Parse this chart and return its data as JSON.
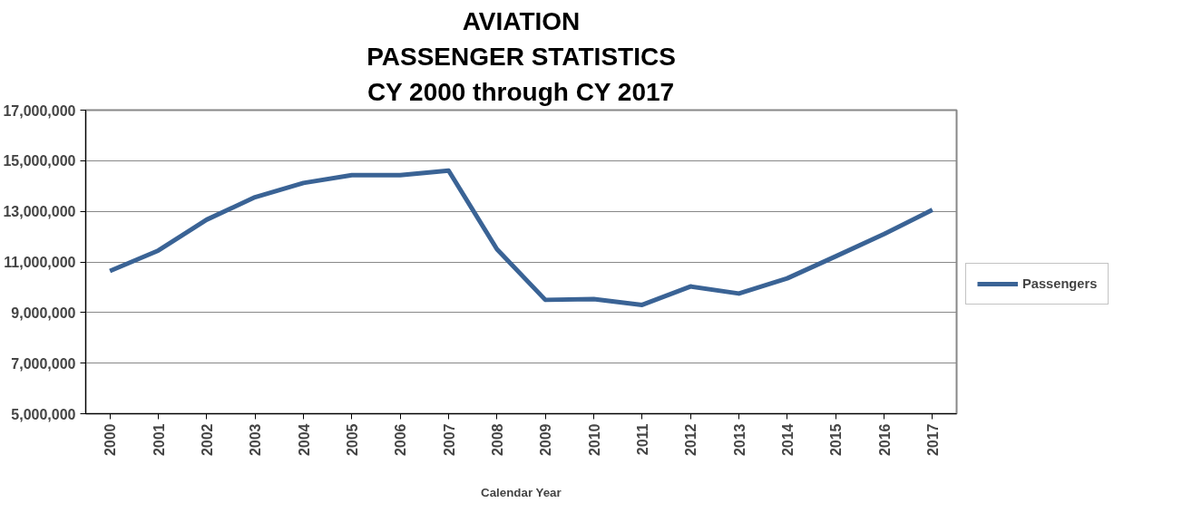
{
  "chart_data": {
    "type": "line",
    "title": "AVIATION\nPASSENGER STATISTICS\nCY 2000 through CY 2017",
    "xlabel": "Calendar Year",
    "categories": [
      "2000",
      "2001",
      "2002",
      "2003",
      "2004",
      "2005",
      "2006",
      "2007",
      "2008",
      "2009",
      "2010",
      "2011",
      "2012",
      "2013",
      "2014",
      "2015",
      "2016",
      "2017"
    ],
    "series": [
      {
        "name": "Passengers",
        "color": "#3a6395",
        "values": [
          10640000,
          11450000,
          12670000,
          13560000,
          14120000,
          14430000,
          14430000,
          14610000,
          11500000,
          9500000,
          9530000,
          9300000,
          10030000,
          9750000,
          10350000,
          11220000,
          12100000,
          13060000
        ]
      }
    ],
    "ylim": [
      5000000,
      17000000
    ],
    "yticks": [
      {
        "value": 5000000,
        "label": "5,000,000"
      },
      {
        "value": 7000000,
        "label": "7,000,000"
      },
      {
        "value": 9000000,
        "label": "9,000,000"
      },
      {
        "value": 11000000,
        "label": "11,000,000"
      },
      {
        "value": 13000000,
        "label": "13,000,000"
      },
      {
        "value": 15000000,
        "label": "15,000,000"
      },
      {
        "value": 17000000,
        "label": "17,000,000"
      }
    ],
    "grid": "y",
    "legend": "right",
    "marker": "none",
    "line_style": "solid"
  }
}
